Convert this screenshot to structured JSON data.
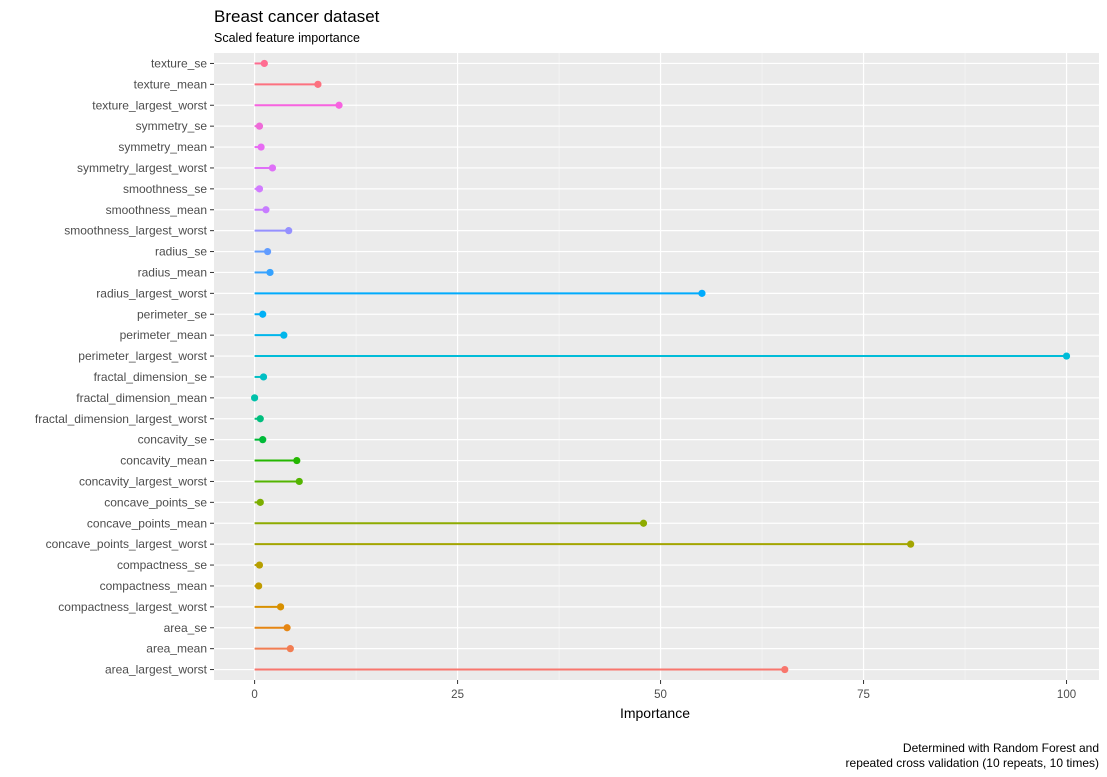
{
  "chart_data": {
    "type": "lollipop",
    "title": "Breast cancer dataset",
    "subtitle": "Scaled feature importance",
    "xlabel": "Importance",
    "ylabel": "",
    "xlim": [
      -5,
      104
    ],
    "xticks": [
      0,
      25,
      50,
      75,
      100
    ],
    "grid": true,
    "legend": "none",
    "caption": [
      "Determined with Random Forest and",
      "repeated cross validation (10 repeats, 10 times)"
    ],
    "categories": [
      "texture_se",
      "texture_mean",
      "texture_largest_worst",
      "symmetry_se",
      "symmetry_mean",
      "symmetry_largest_worst",
      "smoothness_se",
      "smoothness_mean",
      "smoothness_largest_worst",
      "radius_se",
      "radius_mean",
      "radius_largest_worst",
      "perimeter_se",
      "perimeter_mean",
      "perimeter_largest_worst",
      "fractal_dimension_se",
      "fractal_dimension_mean",
      "fractal_dimension_largest_worst",
      "concavity_se",
      "concavity_mean",
      "concavity_largest_worst",
      "concave_points_se",
      "concave_points_mean",
      "concave_points_largest_worst",
      "compactness_se",
      "compactness_mean",
      "compactness_largest_worst",
      "area_se",
      "area_mean",
      "area_largest_worst"
    ],
    "values": [
      1.2,
      7.8,
      10.4,
      0.6,
      0.8,
      2.2,
      0.6,
      1.4,
      4.2,
      1.6,
      1.9,
      55.1,
      1.0,
      3.6,
      100,
      1.1,
      0.0,
      0.7,
      1.0,
      5.2,
      5.5,
      0.7,
      47.9,
      80.8,
      0.6,
      0.5,
      3.2,
      4.0,
      4.4,
      65.3
    ],
    "colors": [
      "#FF6C91",
      "#FC717F",
      "#F763E0",
      "#EE6BD8",
      "#E76BF3",
      "#DF70F8",
      "#D17BFF",
      "#C77CFF",
      "#9590FF",
      "#619CFF",
      "#35A2FF",
      "#00ABFD",
      "#00B0F6",
      "#00B6EB",
      "#00BCD8",
      "#00BFC4",
      "#00C1AA",
      "#00BE7D",
      "#00BA38",
      "#24B700",
      "#53B400",
      "#7CAE00",
      "#8EAB00",
      "#A3A500",
      "#B79F00",
      "#C09B00",
      "#D89000",
      "#E68613",
      "#F27D52",
      "#F8766D"
    ]
  }
}
